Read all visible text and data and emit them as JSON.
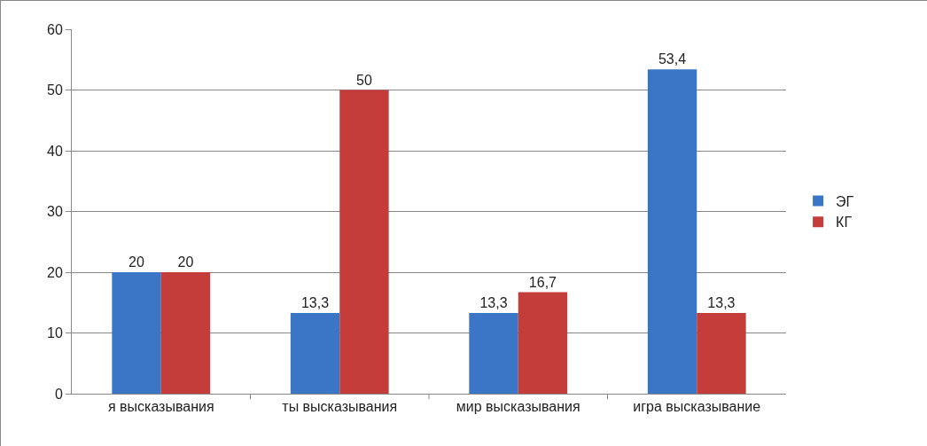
{
  "chart_data": {
    "type": "bar",
    "categories": [
      "я высказывания",
      "ты высказывания",
      "мир высказывания",
      "игра высказывание"
    ],
    "series": [
      {
        "name": "ЭГ",
        "color": "#3b76c6",
        "values": [
          20,
          13.3,
          13.3,
          53.4
        ],
        "value_labels": [
          "20",
          "13,3",
          "13,3",
          "53,4"
        ]
      },
      {
        "name": "КГ",
        "color": "#c43d3a",
        "values": [
          20,
          50,
          16.7,
          13.3
        ],
        "value_labels": [
          "20",
          "50",
          "16,7",
          "13,3"
        ]
      }
    ],
    "ylim": [
      0,
      60
    ],
    "yticks": [
      0,
      10,
      20,
      30,
      40,
      50,
      60
    ],
    "grid": "y",
    "legend": "right"
  }
}
